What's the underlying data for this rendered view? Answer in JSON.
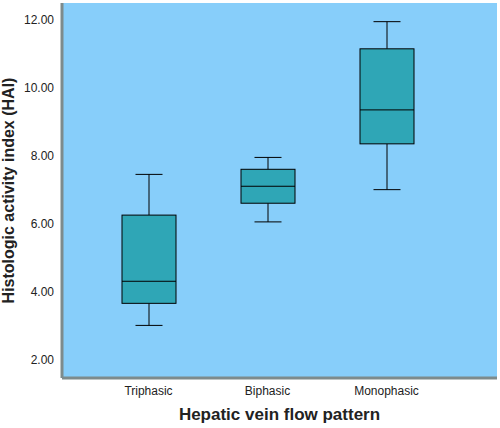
{
  "chart_data": {
    "type": "box",
    "x_label": "Hepatic vein flow pattern",
    "y_label": "Histologic activity index (HAI)",
    "categories": [
      "Triphasic",
      "Biphasic",
      "Monophasic"
    ],
    "min": [
      3.0,
      6.05,
      7.0
    ],
    "q1": [
      3.65,
      6.6,
      8.35
    ],
    "median": [
      4.3,
      7.1,
      9.35
    ],
    "q3": [
      6.25,
      7.6,
      11.15
    ],
    "max": [
      7.45,
      7.95,
      11.95
    ],
    "color": "#2fa6b6",
    "ylim": [
      1.45,
      12.5
    ],
    "yticks": [
      {
        "value": 2,
        "label": "2.00"
      },
      {
        "value": 4,
        "label": "4.00"
      },
      {
        "value": 6,
        "label": "6.00"
      },
      {
        "value": 8,
        "label": "8.00"
      },
      {
        "value": 10,
        "label": "10.00"
      },
      {
        "value": 12,
        "label": "12.00"
      }
    ],
    "grid": false
  }
}
